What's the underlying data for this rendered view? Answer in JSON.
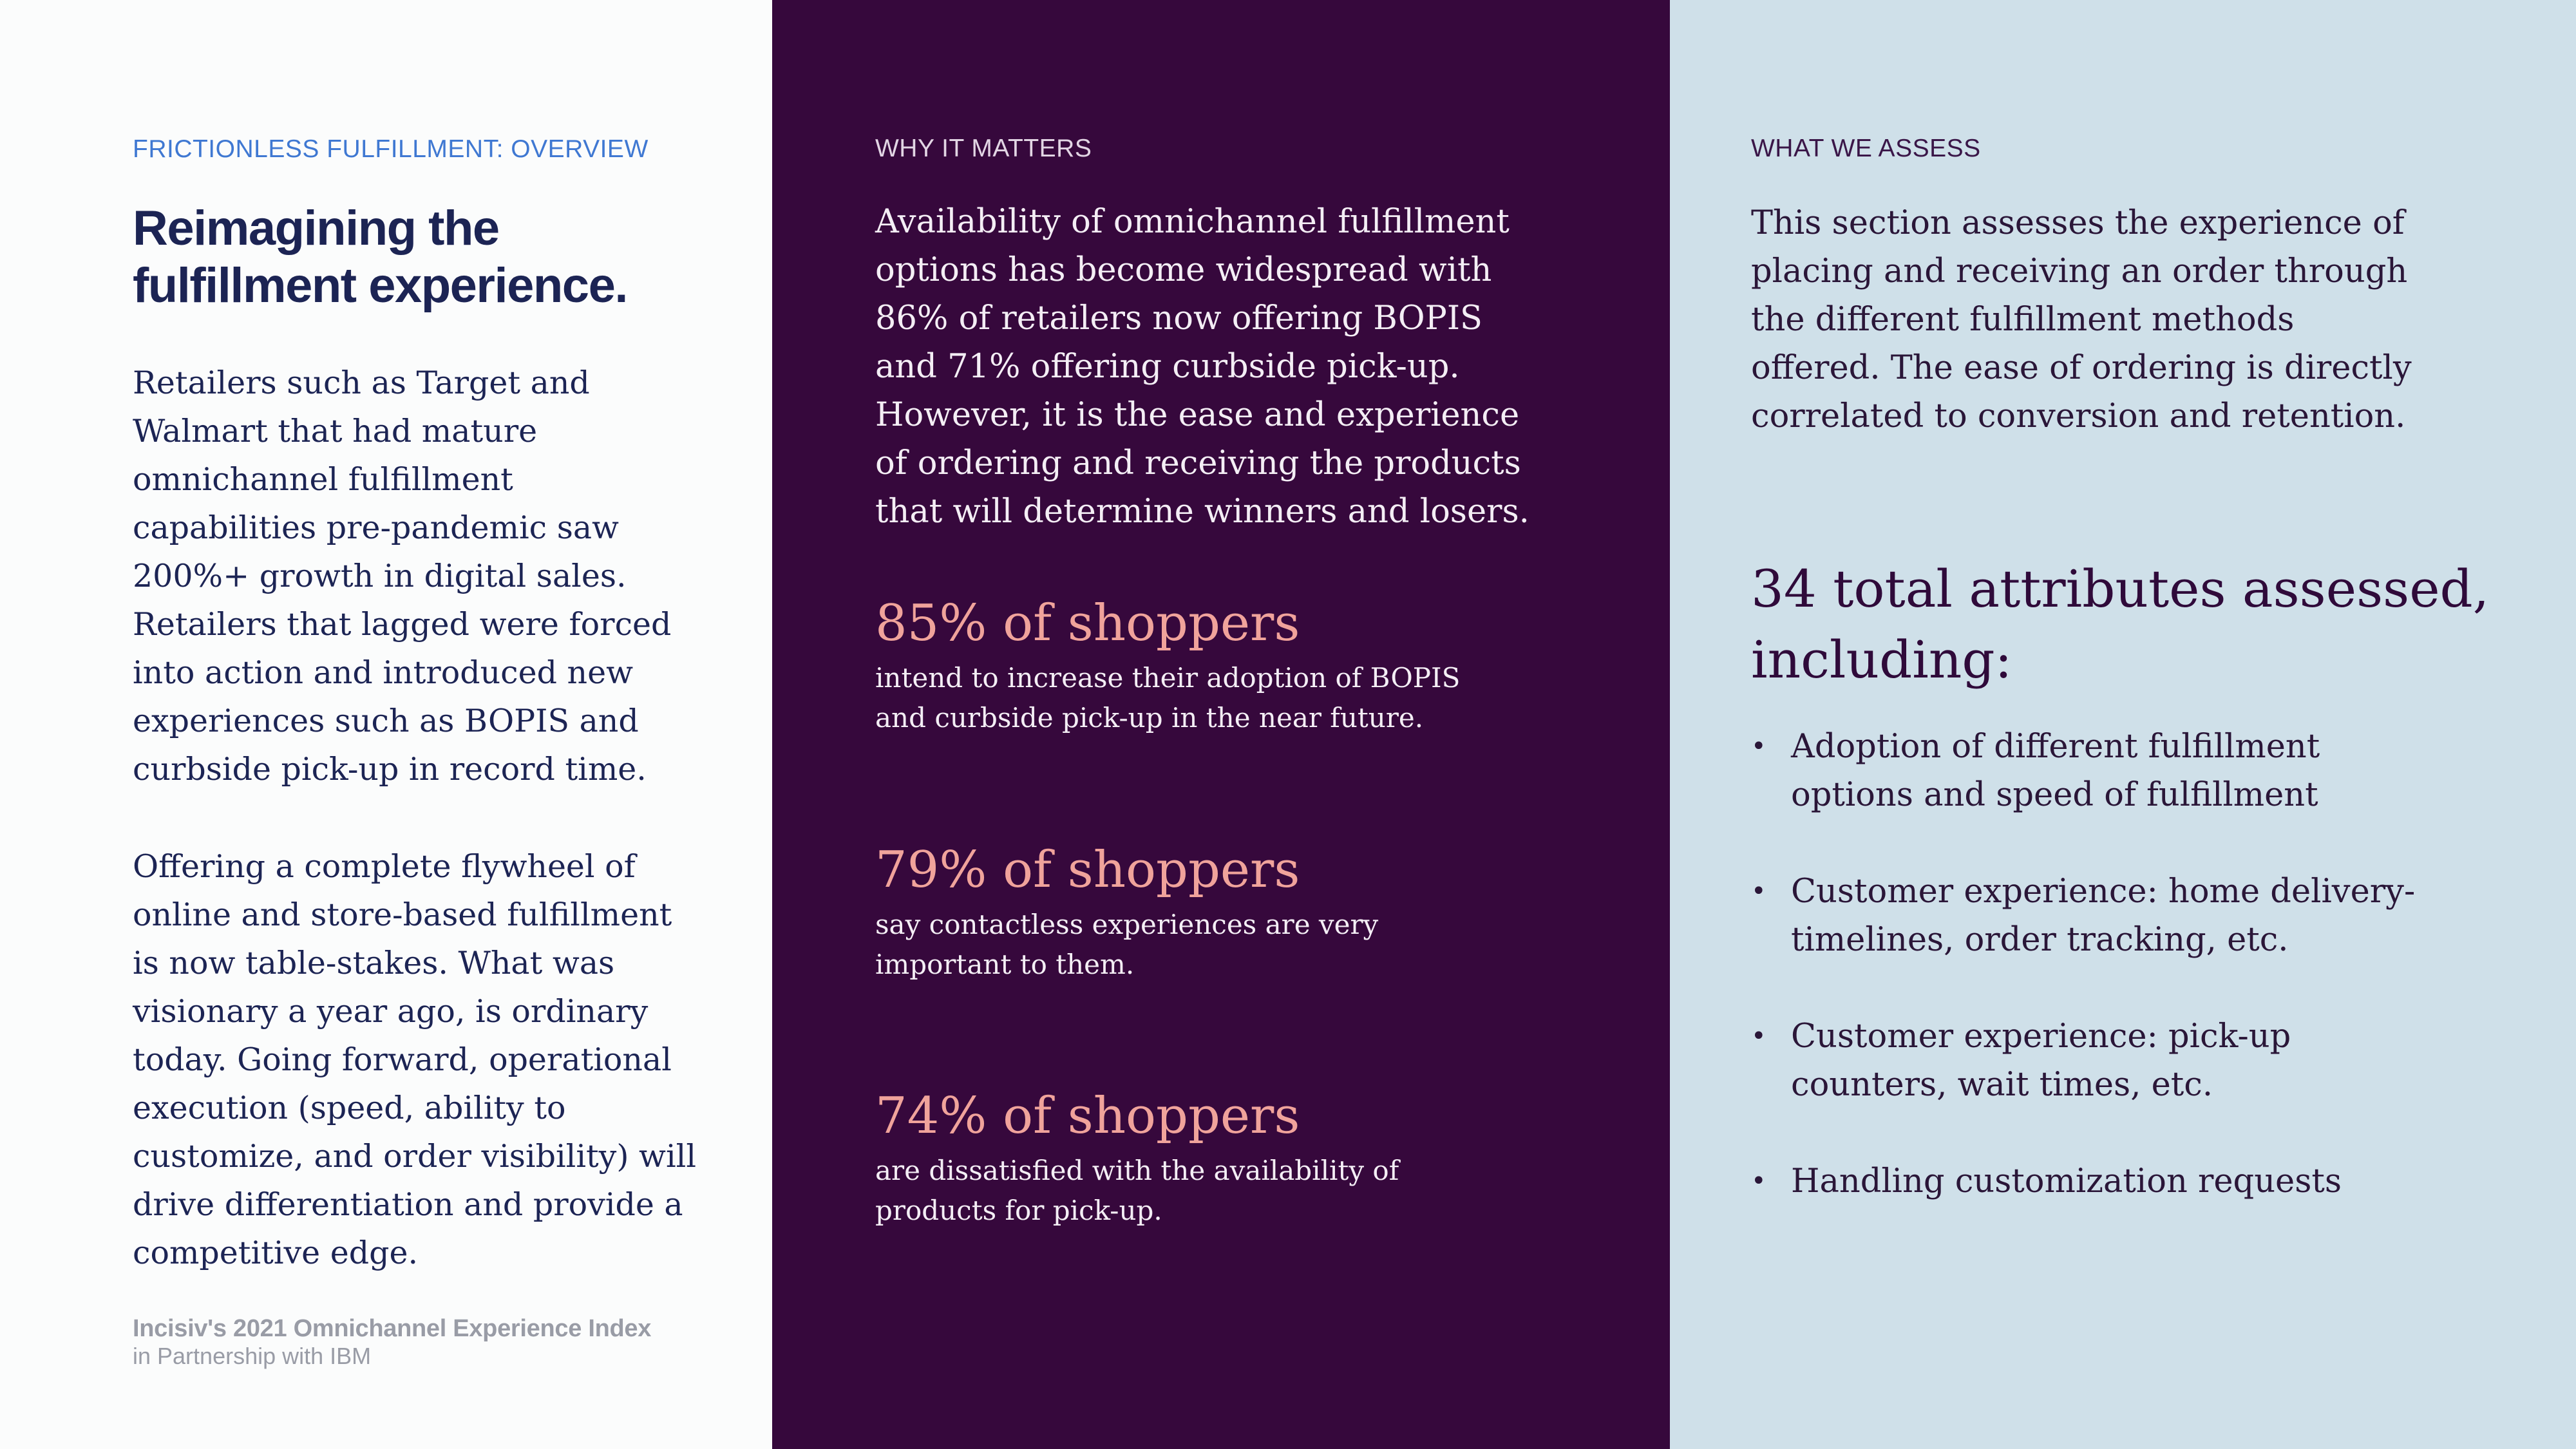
{
  "left": {
    "eyebrow": "FRICTIONLESS FULFILLMENT: OVERVIEW",
    "heading_line1": "Reimagining the",
    "heading_line2": "fulfillment experience.",
    "paragraph1": "Retailers such as Target and Walmart that had mature omnichannel fulfillment capabilities pre-pandemic saw 200%+ growth in digital sales. Retailers that lagged were forced into action and introduced new experiences such as BOPIS and curbside pick-up in record time.",
    "paragraph2": "Offering a complete flywheel of online and store-based fulfillment is now table-stakes. What was visionary a year ago, is ordinary today. Going forward, operational execution (speed, ability to customize, and order visibility) will drive differentiation and provide a competitive edge.",
    "footer_line1": "Incisiv's 2021 Omnichannel Experience Index",
    "footer_line2": "in Partnership with IBM"
  },
  "middle": {
    "eyebrow": "WHY IT MATTERS",
    "intro": "Availability of omnichannel fulfillment options has become widespread with 86% of retailers now offering BOPIS and 71% offering curbside pick-up. However, it is the ease and experience of ordering and receiving the products that will determine winners and losers.",
    "stats": [
      {
        "headline": "85% of shoppers",
        "text_line1": "intend to increase their adoption of BOPIS",
        "text_line2": "and curbside pick-up in the near future."
      },
      {
        "headline": "79% of shoppers",
        "text_line1": "say contactless experiences are very",
        "text_line2": "important to them."
      },
      {
        "headline": "74% of shoppers",
        "text_line1": "are dissatisfied with the availability of",
        "text_line2": "products for pick-up."
      }
    ]
  },
  "right": {
    "eyebrow": "WHAT WE ASSESS",
    "intro": "This section assesses the experience of placing and receiving an order through the different fulfillment methods offered. The ease of ordering is directly correlated to conversion and retention.",
    "heading_line1": "34 total attributes assessed,",
    "heading_line2": "including:",
    "bullet_glyph": "•",
    "items": [
      {
        "line1": "Adoption of different fulfillment",
        "line2": "options and speed of fulfillment"
      },
      {
        "line1": "Customer experience: home delivery-",
        "line2": "timelines, order tracking, etc."
      },
      {
        "line1": "Customer experience: pick-up",
        "line2": "counters, wait times, etc."
      },
      {
        "line1": "Handling customization requests",
        "line2": ""
      }
    ]
  },
  "colors": {
    "left_bg": "#fbfcfc",
    "middle_bg": "#36083c",
    "right_bg": "#cfe0e9",
    "accent_blue": "#3f78d2",
    "stat_pink": "#f0a39b",
    "navy_text": "#1c2454"
  }
}
